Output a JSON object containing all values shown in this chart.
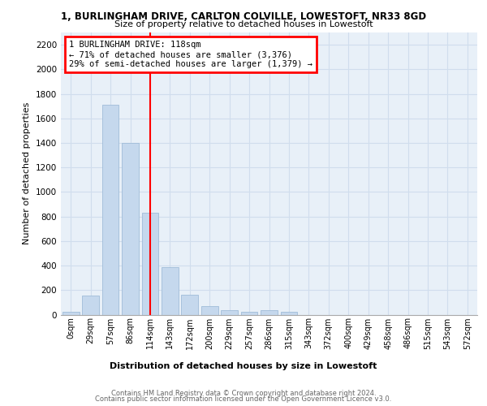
{
  "title1": "1, BURLINGHAM DRIVE, CARLTON COLVILLE, LOWESTOFT, NR33 8GD",
  "title2": "Size of property relative to detached houses in Lowestoft",
  "xlabel": "Distribution of detached houses by size in Lowestoft",
  "ylabel": "Number of detached properties",
  "footnote1": "Contains HM Land Registry data © Crown copyright and database right 2024.",
  "footnote2": "Contains public sector information licensed under the Open Government Licence v3.0.",
  "bar_labels": [
    "0sqm",
    "29sqm",
    "57sqm",
    "86sqm",
    "114sqm",
    "143sqm",
    "172sqm",
    "200sqm",
    "229sqm",
    "257sqm",
    "286sqm",
    "315sqm",
    "343sqm",
    "372sqm",
    "400sqm",
    "429sqm",
    "458sqm",
    "486sqm",
    "515sqm",
    "543sqm",
    "572sqm"
  ],
  "bar_values": [
    20,
    155,
    1710,
    1400,
    830,
    385,
    165,
    70,
    35,
    25,
    35,
    20,
    0,
    0,
    0,
    0,
    0,
    0,
    0,
    0,
    0
  ],
  "bar_color": "#c5d8ed",
  "bar_edgecolor": "#a0bcd8",
  "grid_color": "#d0dded",
  "bg_color": "#e8f0f8",
  "red_line_x": 4.0,
  "annotation_title": "1 BURLINGHAM DRIVE: 118sqm",
  "annotation_line1": "← 71% of detached houses are smaller (3,376)",
  "annotation_line2": "29% of semi-detached houses are larger (1,379) →",
  "annotation_box_color": "white",
  "annotation_box_edgecolor": "red",
  "ylim": [
    0,
    2300
  ],
  "yticks": [
    0,
    200,
    400,
    600,
    800,
    1000,
    1200,
    1400,
    1600,
    1800,
    2000,
    2200
  ]
}
